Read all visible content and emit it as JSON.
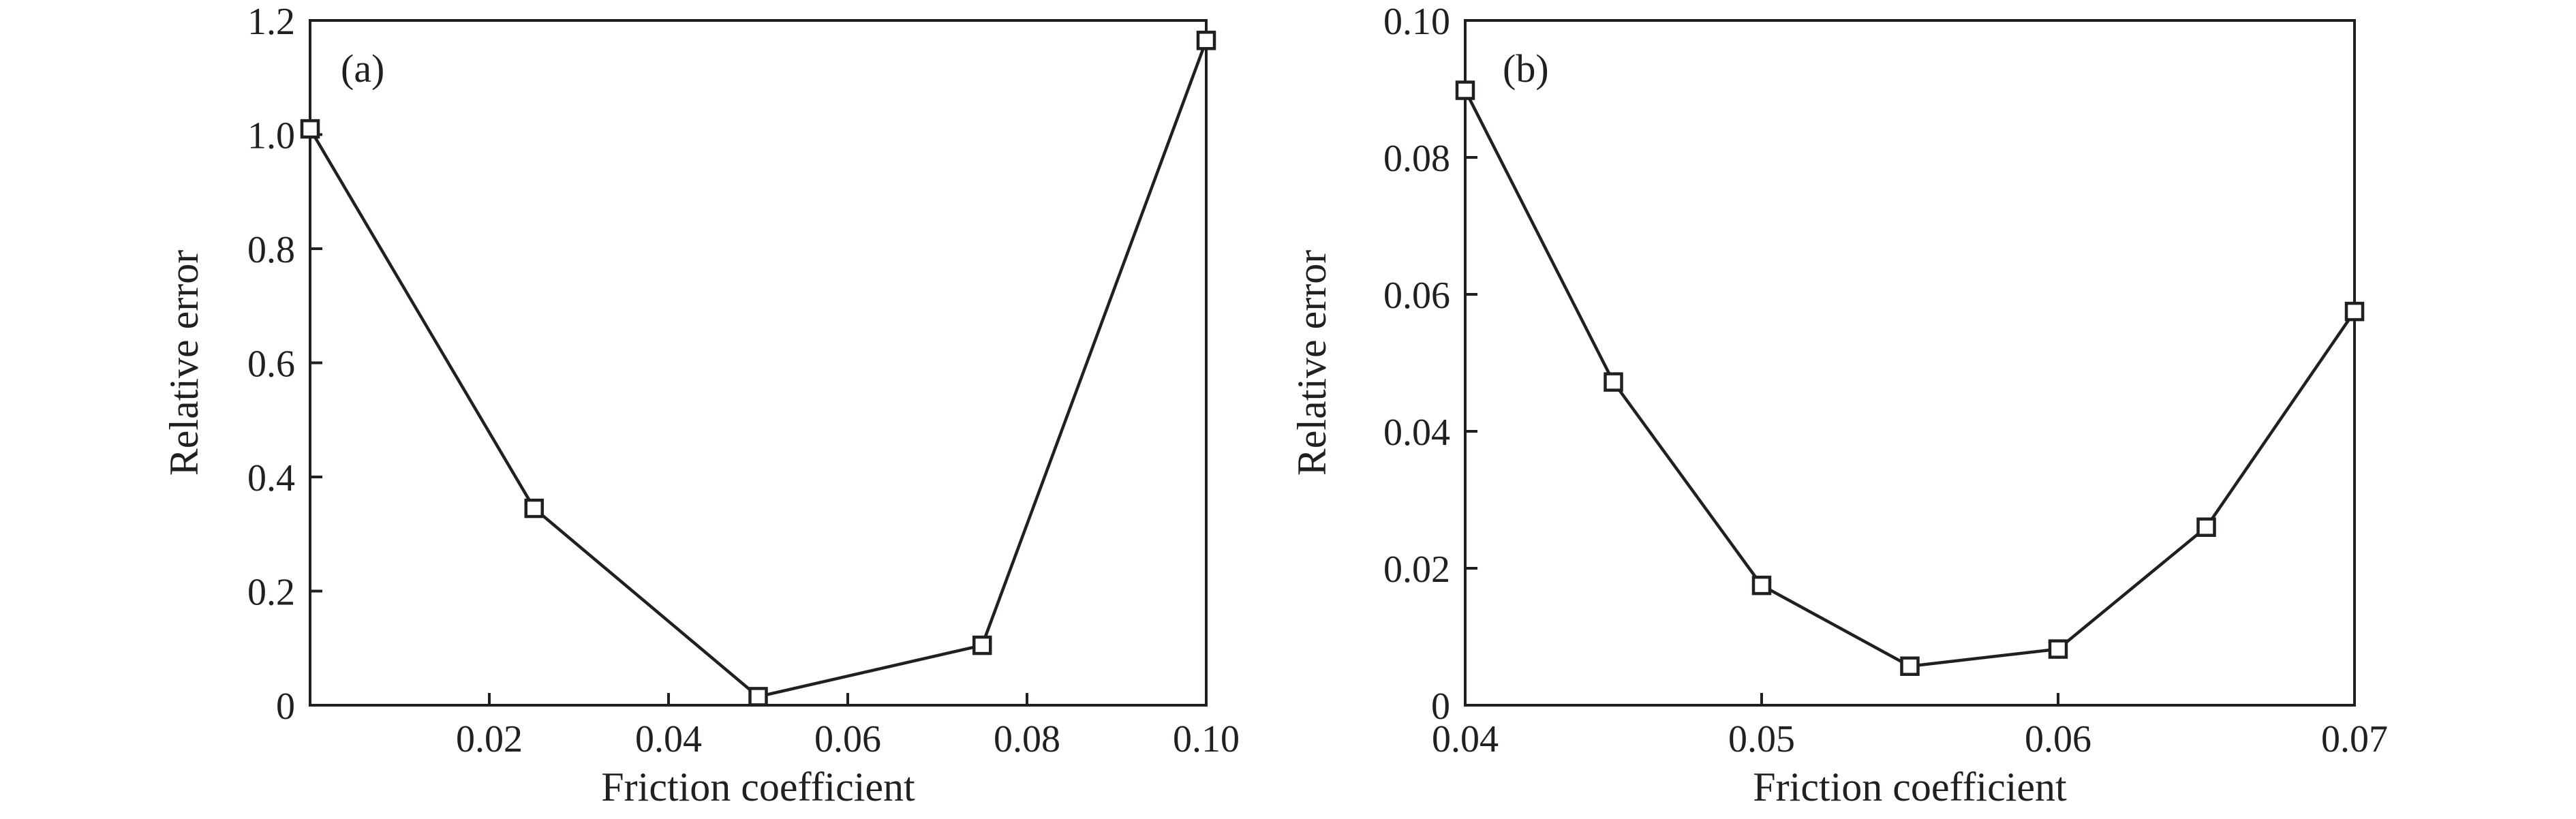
{
  "chart_data": [
    {
      "type": "line",
      "panel_label": "(a)",
      "xlabel": "Friction coefficient",
      "ylabel": "Relative error",
      "xlim": [
        0,
        0.1
      ],
      "ylim": [
        0,
        1.2
      ],
      "x_ticks": [
        0.02,
        0.04,
        0.06,
        0.08,
        0.1
      ],
      "x_tick_labels": [
        "0.02",
        "0.04",
        "0.06",
        "0.08",
        "0.10"
      ],
      "y_ticks": [
        0,
        0.2,
        0.4,
        0.6,
        0.8,
        1.0,
        1.2
      ],
      "y_tick_labels": [
        "0",
        "0.2",
        "0.4",
        "0.6",
        "0.8",
        "1.0",
        "1.2"
      ],
      "marker": "square-open",
      "grid": false,
      "color": "#231f20",
      "series": [
        {
          "x": [
            0.0,
            0.025,
            0.05,
            0.075,
            0.1
          ],
          "y": [
            1.01,
            0.345,
            0.015,
            0.105,
            1.165
          ]
        }
      ]
    },
    {
      "type": "line",
      "panel_label": "(b)",
      "xlabel": "Friction coefficient",
      "ylabel": "Relative error",
      "xlim": [
        0.04,
        0.07
      ],
      "ylim": [
        0,
        0.1
      ],
      "x_ticks": [
        0.04,
        0.05,
        0.06,
        0.07
      ],
      "x_tick_labels": [
        "0.04",
        "0.05",
        "0.06",
        "0.07"
      ],
      "y_ticks": [
        0,
        0.02,
        0.04,
        0.06,
        0.08,
        0.1
      ],
      "y_tick_labels": [
        "0",
        "0.02",
        "0.04",
        "0.06",
        "0.08",
        "0.10"
      ],
      "marker": "square-open",
      "grid": false,
      "color": "#231f20",
      "series": [
        {
          "x": [
            0.04,
            0.045,
            0.05,
            0.055,
            0.06,
            0.065,
            0.07
          ],
          "y": [
            0.0898,
            0.0472,
            0.0175,
            0.0057,
            0.0082,
            0.026,
            0.0575
          ]
        }
      ]
    }
  ]
}
